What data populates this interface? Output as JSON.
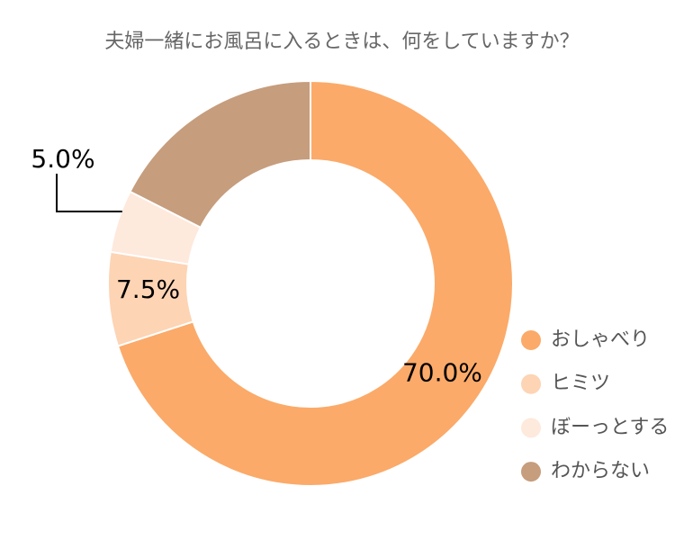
{
  "chart_data": {
    "type": "donut",
    "title": "夫婦一緒にお風呂に入るときは、何をしていますか？",
    "categories": [
      "おしゃべり",
      "ヒミツ",
      "ぼーっとする",
      "わからない"
    ],
    "values": [
      70.0,
      7.5,
      5.0,
      17.5
    ],
    "value_labels": [
      "70.0%",
      "7.5%",
      "5.0%",
      null
    ],
    "colors": [
      "#fbaa69",
      "#fdd4b4",
      "#fee9dd",
      "#c69d7d"
    ],
    "legend": "right"
  }
}
